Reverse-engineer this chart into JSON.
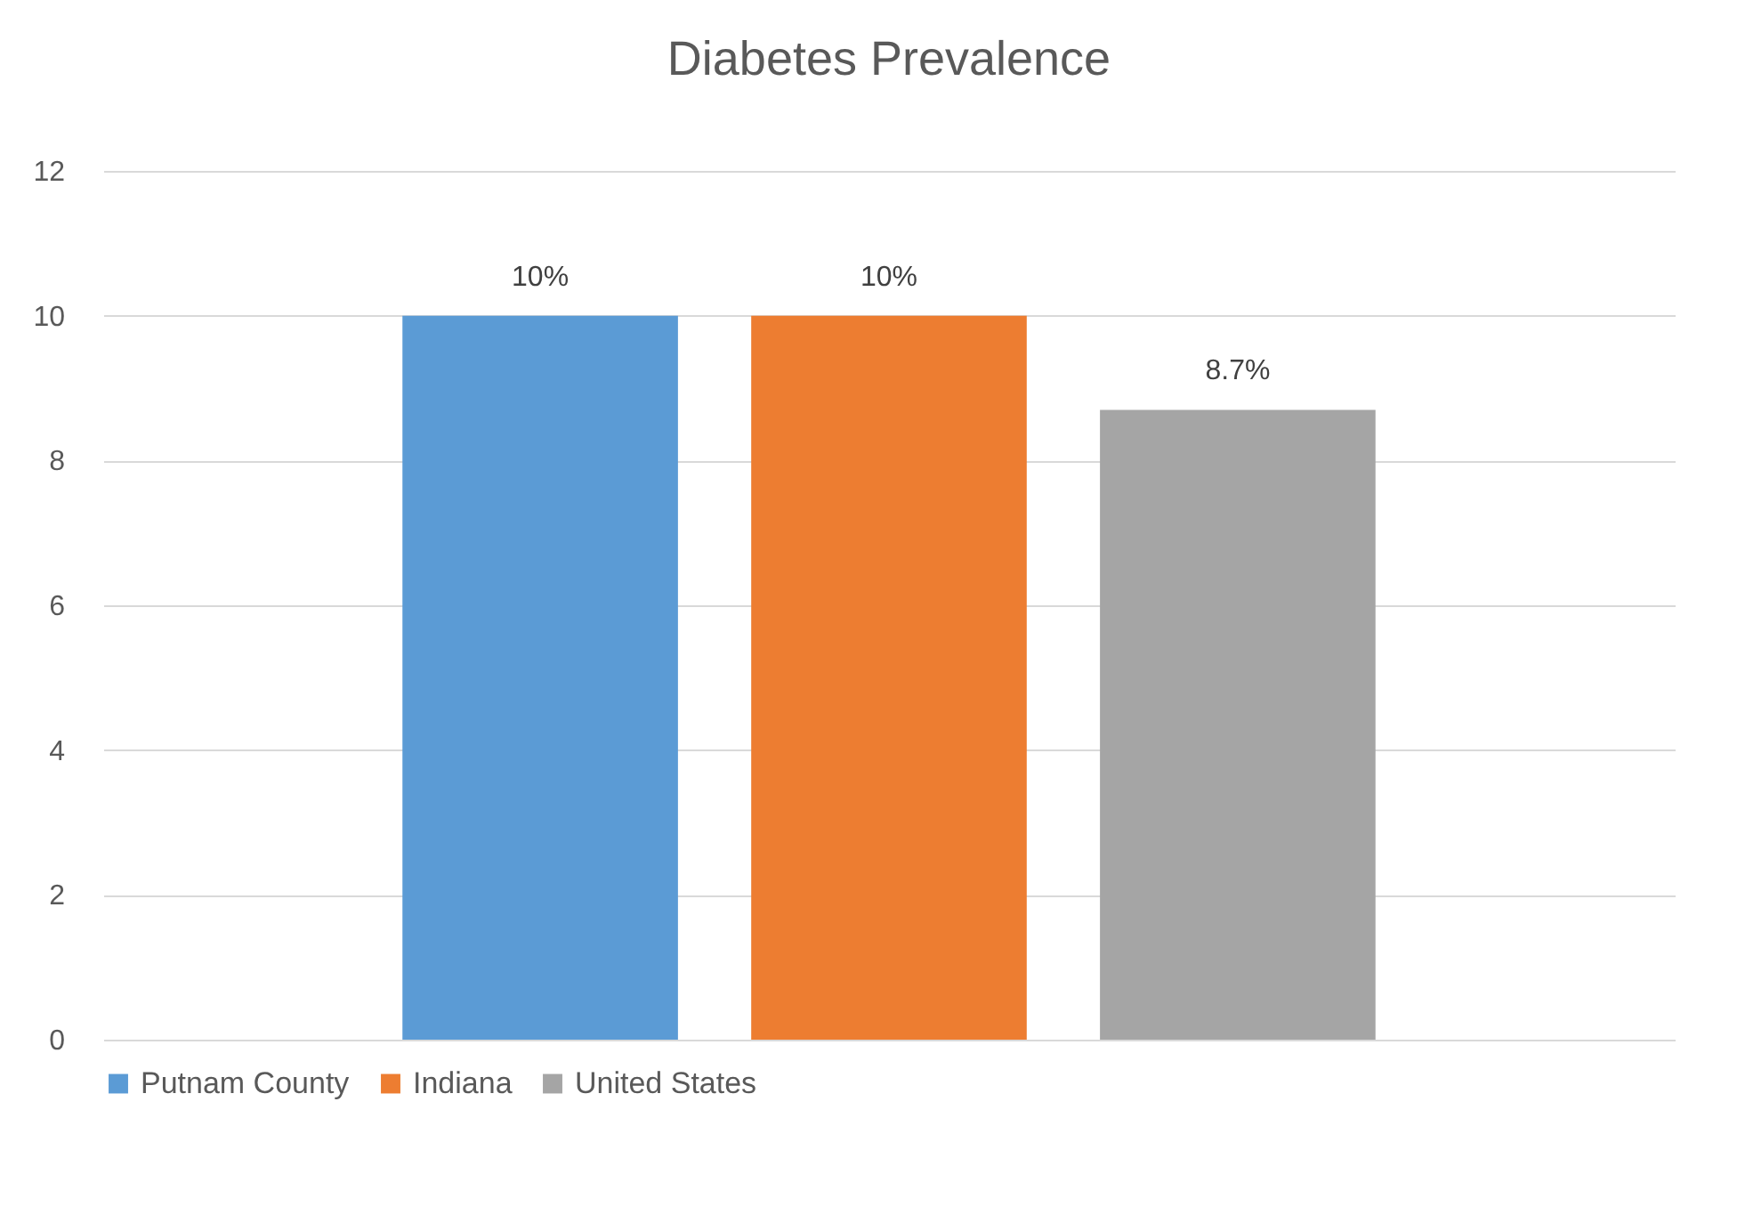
{
  "chart_data": {
    "type": "bar",
    "title": "Diabetes Prevalence",
    "categories": [
      null
    ],
    "series": [
      {
        "name": "Putnam County",
        "color": "#5b9bd5",
        "values": [
          10
        ],
        "value_labels": [
          "10%"
        ]
      },
      {
        "name": "Indiana",
        "color": "#ed7d31",
        "values": [
          10
        ],
        "value_labels": [
          "10%"
        ]
      },
      {
        "name": "United States",
        "color": "#a5a5a5",
        "values": [
          8.7
        ],
        "value_labels": [
          "8.7%"
        ]
      }
    ],
    "ylim": [
      0,
      12
    ],
    "yticks": [
      0,
      2,
      4,
      6,
      8,
      10,
      12
    ],
    "grid": "y",
    "legend": "bottom",
    "tick_labels": "y"
  }
}
